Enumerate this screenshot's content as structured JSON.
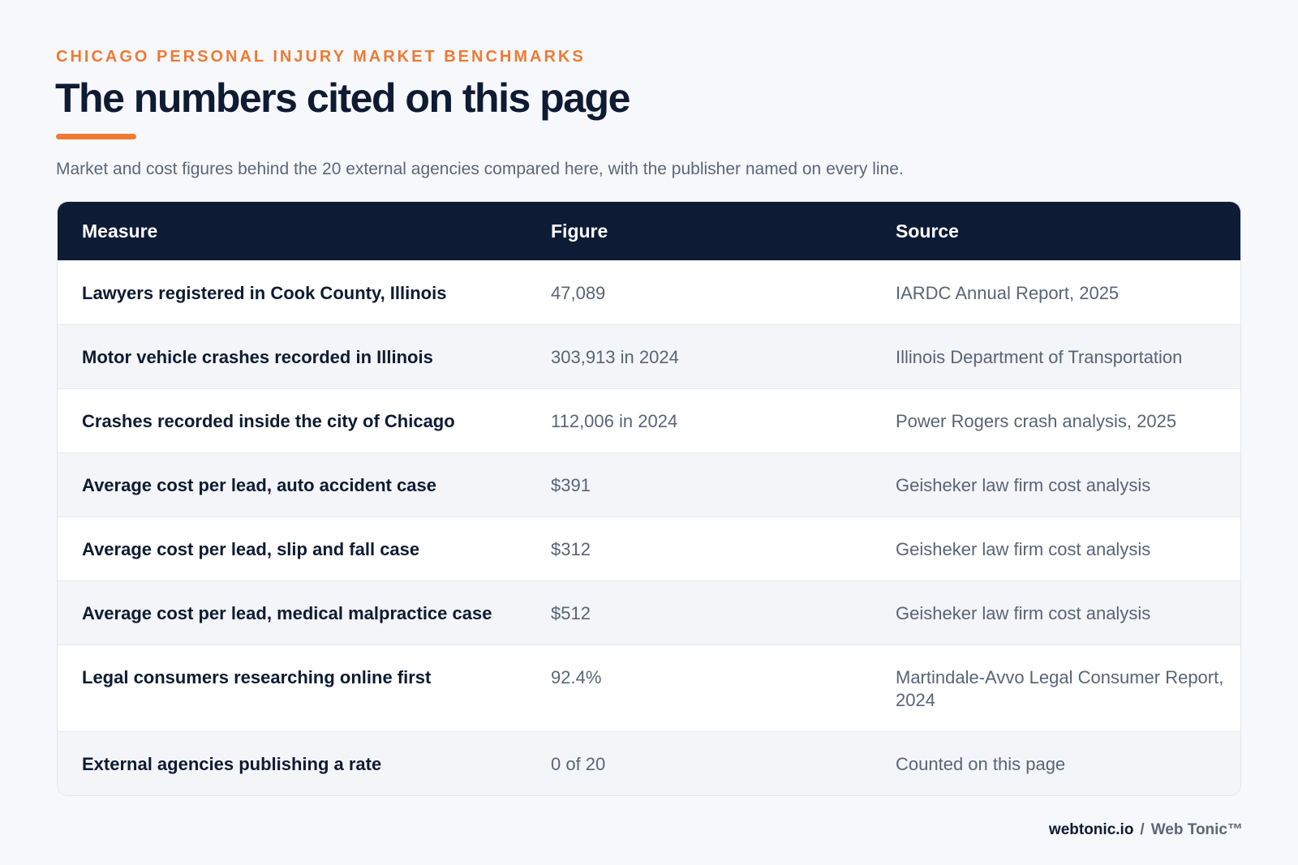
{
  "header": {
    "eyebrow": "CHICAGO PERSONAL INJURY MARKET BENCHMARKS",
    "title": "The numbers cited on this page",
    "subtitle": "Market and cost figures behind the 20 external agencies compared here, with the publisher named on every line."
  },
  "table": {
    "columns": [
      "Measure",
      "Figure",
      "Source"
    ],
    "rows": [
      {
        "measure": "Lawyers registered in Cook County, Illinois",
        "figure": "47,089",
        "source": "IARDC Annual Report, 2025"
      },
      {
        "measure": "Motor vehicle crashes recorded in Illinois",
        "figure": "303,913 in 2024",
        "source": "Illinois Department of Transportation"
      },
      {
        "measure": "Crashes recorded inside the city of Chicago",
        "figure": "112,006 in 2024",
        "source": "Power Rogers crash analysis, 2025"
      },
      {
        "measure": "Average cost per lead, auto accident case",
        "figure": "$391",
        "source": "Geisheker law firm cost analysis"
      },
      {
        "measure": "Average cost per lead, slip and fall case",
        "figure": "$312",
        "source": "Geisheker law firm cost analysis"
      },
      {
        "measure": "Average cost per lead, medical malpractice case",
        "figure": "$512",
        "source": "Geisheker law firm cost analysis"
      },
      {
        "measure": "Legal consumers researching online first",
        "figure": "92.4%",
        "source": "Martindale-Avvo Legal Consumer Report, 2024"
      },
      {
        "measure": "External agencies publishing a rate",
        "figure": "0 of 20",
        "source": "Counted on this page"
      }
    ]
  },
  "footer": {
    "domain": "webtonic.io",
    "separator": "/",
    "brand": "Web Tonic™"
  },
  "colors": {
    "accent": "#ee7a35",
    "navy": "#0e1b35",
    "background": "#f6f8fb"
  }
}
